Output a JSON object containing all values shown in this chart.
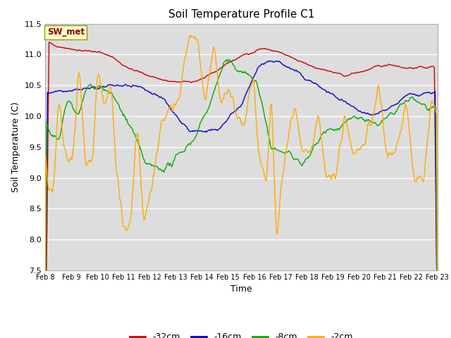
{
  "title": "Soil Temperature Profile C1",
  "xlabel": "Time",
  "ylabel": "Soil Temperature (C)",
  "ylim": [
    7.5,
    11.5
  ],
  "yticks": [
    7.5,
    8.0,
    8.5,
    9.0,
    9.5,
    10.0,
    10.5,
    11.0,
    11.5
  ],
  "xtick_labels": [
    "Feb 8",
    "Feb 9",
    "Feb 10",
    "Feb 11",
    "Feb 12",
    "Feb 13",
    "Feb 14",
    "Feb 15",
    "Feb 16",
    "Feb 17",
    "Feb 18",
    "Feb 19",
    "Feb 20",
    "Feb 21",
    "Feb 22",
    "Feb 23"
  ],
  "legend_labels": [
    "-32cm",
    "-16cm",
    "-8cm",
    "-2cm"
  ],
  "legend_colors": [
    "#cc0000",
    "#0000cc",
    "#00aa00",
    "#ffaa00"
  ],
  "line_colors": [
    "#cc0000",
    "#0000cc",
    "#00aa00",
    "#ffaa00"
  ],
  "sw_met_box_facecolor": "#ffffcc",
  "sw_met_box_edgecolor": "#999900",
  "sw_met_text_color": "#880000",
  "fig_bg_color": "#ffffff",
  "plot_bg_color": "#dddddd",
  "grid_color": "#ffffff",
  "spine_color": "#aaaaaa",
  "title_fontsize": 11,
  "label_fontsize": 9,
  "tick_fontsize": 8,
  "xtick_fontsize": 7,
  "legend_fontsize": 9
}
